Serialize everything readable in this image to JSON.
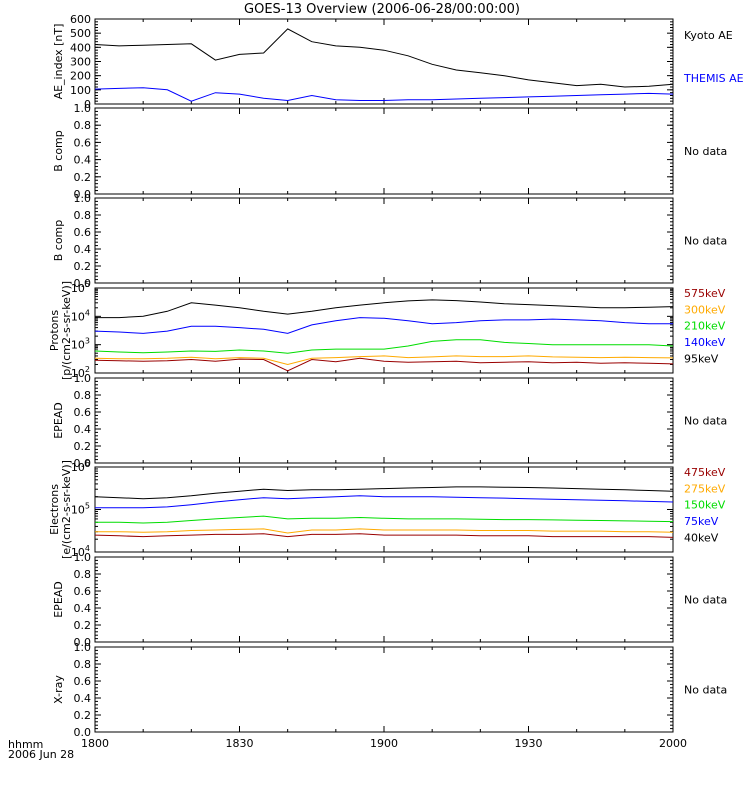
{
  "title": "GOES-13 Overview (2006-06-28/00:00:00)",
  "time_axis": {
    "ticks": [
      "1800",
      "1830",
      "1900",
      "1930",
      "2000"
    ],
    "format_label": "hhmm",
    "date_label": "2006 Jun 28"
  },
  "colors": {
    "black": "#000000",
    "blue": "#0000ff",
    "green": "#00dd00",
    "orange": "#ffaa00",
    "darkred": "#990000"
  },
  "chart_data": [
    {
      "type": "line",
      "ylabel": "AE_index [nT]",
      "ylim": [
        0,
        600
      ],
      "y_ticks": [
        "0",
        "100",
        "200",
        "300",
        "400",
        "500",
        "600"
      ],
      "x_minutes": [
        0,
        5,
        10,
        15,
        20,
        25,
        30,
        35,
        40,
        45,
        50,
        55,
        60,
        65,
        70,
        75,
        80,
        85,
        90,
        95,
        100,
        105,
        110,
        115,
        120
      ],
      "series": [
        {
          "name": "Kyoto AE",
          "color": "black",
          "values": [
            420,
            410,
            415,
            420,
            425,
            310,
            350,
            360,
            530,
            440,
            410,
            400,
            380,
            340,
            280,
            240,
            220,
            200,
            170,
            150,
            130,
            140,
            120,
            125,
            140
          ]
        },
        {
          "name": "THEMIS AE",
          "color": "blue",
          "values": [
            105,
            110,
            115,
            100,
            20,
            80,
            70,
            40,
            25,
            60,
            30,
            25,
            25,
            30,
            30,
            35,
            40,
            45,
            50,
            55,
            60,
            65,
            70,
            75,
            70
          ]
        }
      ]
    },
    {
      "type": "line",
      "ylabel": "B comp",
      "ylim": [
        0,
        1
      ],
      "y_ticks": [
        "0.0",
        "0.2",
        "0.4",
        "0.6",
        "0.8",
        "1.0"
      ],
      "series": [],
      "status": "No data"
    },
    {
      "type": "line",
      "ylabel": "B comp",
      "ylim": [
        0,
        1
      ],
      "y_ticks": [
        "0.0",
        "0.2",
        "0.4",
        "0.6",
        "0.8",
        "1.0"
      ],
      "series": [],
      "status": "No data"
    },
    {
      "type": "line",
      "ylabel_line1": "Protons",
      "ylabel_line2": "[p/(cm2-s-sr-keV)]",
      "log": true,
      "ylim": [
        100,
        100000
      ],
      "y_ticks": [
        {
          "value": 100,
          "base": "10",
          "exp": "2"
        },
        {
          "value": 1000,
          "base": "10",
          "exp": "3"
        },
        {
          "value": 10000,
          "base": "10",
          "exp": "4"
        },
        {
          "value": 100000,
          "base": "10",
          "exp": "5"
        }
      ],
      "x_minutes": [
        0,
        5,
        10,
        15,
        20,
        25,
        30,
        35,
        40,
        45,
        50,
        55,
        60,
        65,
        70,
        75,
        80,
        85,
        90,
        95,
        100,
        105,
        110,
        115,
        120
      ],
      "series": [
        {
          "name": "575keV",
          "color": "darkred",
          "values": [
            280,
            270,
            260,
            270,
            300,
            260,
            310,
            300,
            120,
            300,
            250,
            330,
            260,
            240,
            250,
            260,
            230,
            240,
            250,
            230,
            240,
            220,
            230,
            220,
            210
          ]
        },
        {
          "name": "300keV",
          "color": "orange",
          "values": [
            330,
            320,
            320,
            330,
            360,
            320,
            350,
            330,
            200,
            330,
            350,
            380,
            400,
            350,
            370,
            400,
            380,
            380,
            400,
            370,
            360,
            350,
            360,
            350,
            340
          ]
        },
        {
          "name": "210keV",
          "color": "green",
          "values": [
            600,
            550,
            520,
            550,
            600,
            580,
            650,
            600,
            500,
            650,
            700,
            700,
            700,
            900,
            1300,
            1500,
            1500,
            1200,
            1100,
            1000,
            1000,
            1000,
            1000,
            1000,
            900
          ]
        },
        {
          "name": "140keV",
          "color": "blue",
          "values": [
            3000,
            2800,
            2500,
            3000,
            4500,
            4500,
            4000,
            3500,
            2500,
            5000,
            7000,
            9000,
            8500,
            7000,
            5500,
            6000,
            7000,
            7500,
            7500,
            8000,
            7500,
            7000,
            6000,
            5500,
            5500
          ]
        },
        {
          "name": "95keV",
          "color": "black",
          "values": [
            9000,
            9000,
            10000,
            15000,
            30000,
            25000,
            20000,
            15000,
            12000,
            15000,
            20000,
            25000,
            30000,
            35000,
            38000,
            36000,
            32000,
            28000,
            26000,
            24000,
            22000,
            20000,
            20000,
            21000,
            22000
          ]
        }
      ]
    },
    {
      "type": "line",
      "ylabel": "EPEAD",
      "ylim": [
        0,
        1
      ],
      "y_ticks": [
        "0.0",
        "0.2",
        "0.4",
        "0.6",
        "0.8",
        "1.0"
      ],
      "series": [],
      "status": "No data"
    },
    {
      "type": "line",
      "ylabel_line1": "Electrons",
      "ylabel_line2": "[e/(cm2-s-sr-keV)]",
      "log": true,
      "ylim": [
        10000,
        1000000
      ],
      "y_ticks": [
        {
          "value": 10000,
          "base": "10",
          "exp": "4"
        },
        {
          "value": 100000,
          "base": "10",
          "exp": "5"
        },
        {
          "value": 1000000,
          "base": "10",
          "exp": "6"
        }
      ],
      "x_minutes": [
        0,
        5,
        10,
        15,
        20,
        25,
        30,
        35,
        40,
        45,
        50,
        55,
        60,
        65,
        70,
        75,
        80,
        85,
        90,
        95,
        100,
        105,
        110,
        115,
        120
      ],
      "series": [
        {
          "name": "475keV",
          "color": "darkred",
          "values": [
            25000,
            24000,
            23000,
            24000,
            25000,
            26000,
            26000,
            27000,
            23000,
            26000,
            26000,
            27000,
            25000,
            25000,
            25000,
            25000,
            24000,
            24000,
            24000,
            23000,
            23000,
            23000,
            23000,
            23000,
            22000
          ]
        },
        {
          "name": "275keV",
          "color": "orange",
          "values": [
            30000,
            30000,
            29000,
            30000,
            32000,
            33000,
            34000,
            35000,
            28000,
            33000,
            33000,
            35000,
            33000,
            33000,
            33000,
            33000,
            32000,
            32000,
            32000,
            31000,
            31000,
            31000,
            30000,
            30000,
            29000
          ]
        },
        {
          "name": "150keV",
          "color": "green",
          "values": [
            50000,
            50000,
            48000,
            50000,
            55000,
            60000,
            65000,
            70000,
            60000,
            62000,
            62000,
            65000,
            62000,
            60000,
            60000,
            60000,
            59000,
            58000,
            58000,
            57000,
            56000,
            55000,
            54000,
            53000,
            52000
          ]
        },
        {
          "name": "75keV",
          "color": "blue",
          "values": [
            110000,
            110000,
            110000,
            115000,
            130000,
            150000,
            170000,
            190000,
            180000,
            190000,
            200000,
            210000,
            200000,
            200000,
            200000,
            195000,
            190000,
            185000,
            180000,
            175000,
            170000,
            165000,
            160000,
            155000,
            150000
          ]
        },
        {
          "name": "40keV",
          "color": "black",
          "values": [
            200000,
            190000,
            180000,
            190000,
            210000,
            240000,
            270000,
            300000,
            280000,
            290000,
            290000,
            300000,
            310000,
            320000,
            330000,
            340000,
            340000,
            335000,
            330000,
            320000,
            310000,
            300000,
            290000,
            280000,
            270000
          ]
        }
      ]
    },
    {
      "type": "line",
      "ylabel": "EPEAD",
      "ylim": [
        0,
        1
      ],
      "y_ticks": [
        "0.0",
        "0.2",
        "0.4",
        "0.6",
        "0.8",
        "1.0"
      ],
      "series": [],
      "status": "No data"
    },
    {
      "type": "line",
      "ylabel": "X-ray",
      "ylim": [
        0,
        1
      ],
      "y_ticks": [
        "0.0",
        "0.2",
        "0.4",
        "0.6",
        "0.8",
        "1.0"
      ],
      "series": [],
      "status": "No data"
    }
  ]
}
